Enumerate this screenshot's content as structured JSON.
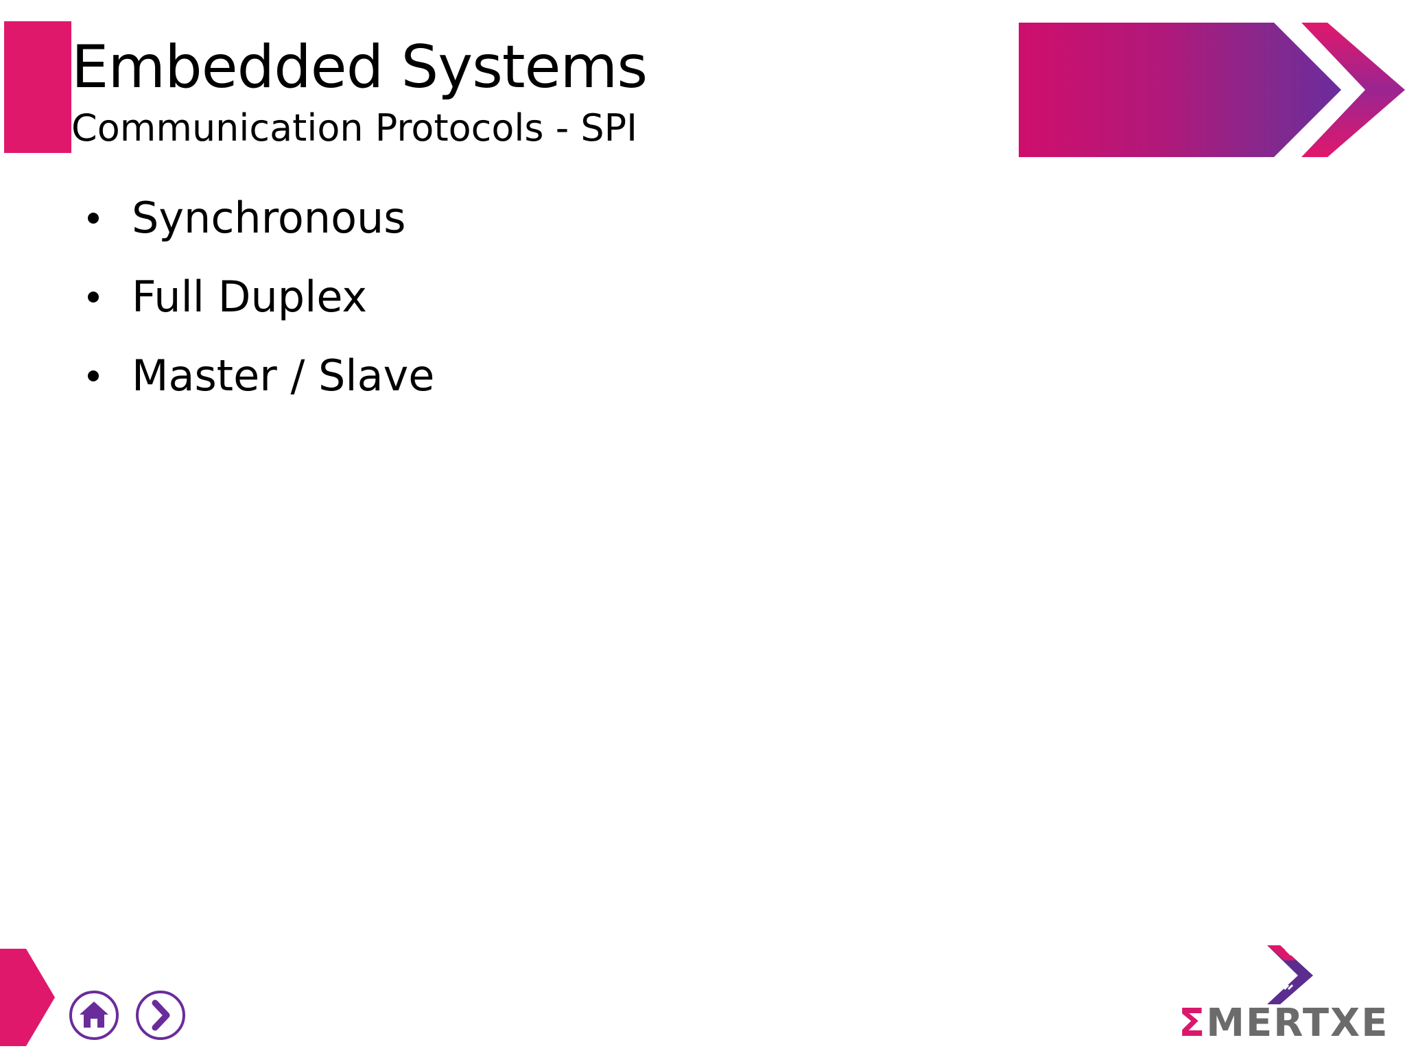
{
  "slide": {
    "title": "Embedded Systems",
    "subtitle": "Communication Protocols - SPI",
    "bullets": [
      "Synchronous",
      "Full Duplex",
      "Master / Slave"
    ]
  },
  "navigation": {
    "home_icon": "home-icon",
    "next_icon": "chevron-right-icon"
  },
  "logo": {
    "mark": "Σ",
    "text": "MERTXE"
  },
  "colors": {
    "accent_pink": "#e0186c",
    "accent_purple": "#6a2c9a",
    "logo_gray": "#6b6b6b"
  }
}
